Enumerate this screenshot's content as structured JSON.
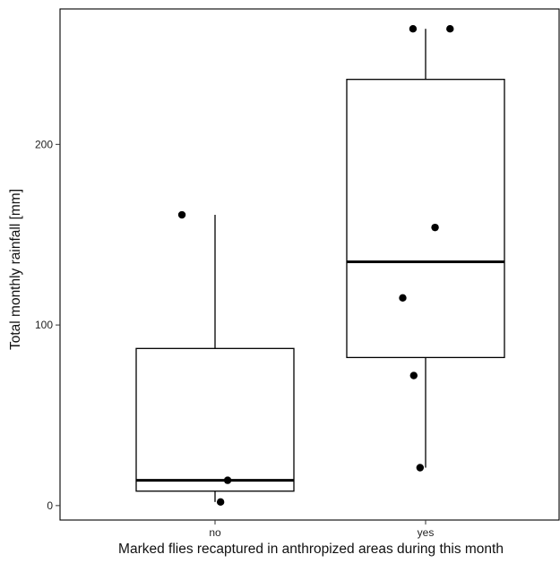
{
  "chart_data": {
    "type": "boxplot",
    "xlabel": "Marked flies recaptured in anthropized areas during this month",
    "ylabel": "Total monthly rainfall [mm]",
    "categories": [
      "no",
      "yes"
    ],
    "ylim": [
      -8,
      275
    ],
    "yticks": [
      0,
      100,
      200
    ],
    "grid": false,
    "boxes": [
      {
        "category": "no",
        "whisker_low": 2,
        "q1": 8,
        "median": 14,
        "q3": 87,
        "whisker_high": 161
      },
      {
        "category": "yes",
        "whisker_low": 21,
        "q1": 82,
        "median": 135,
        "q3": 236,
        "whisker_high": 264
      }
    ],
    "points": [
      {
        "category": "no",
        "jitter": -0.42,
        "y": 161
      },
      {
        "category": "no",
        "jitter": 0.16,
        "y": 14
      },
      {
        "category": "no",
        "jitter": 0.07,
        "y": 2
      },
      {
        "category": "yes",
        "jitter": -0.16,
        "y": 264
      },
      {
        "category": "yes",
        "jitter": 0.31,
        "y": 264
      },
      {
        "category": "yes",
        "jitter": 0.12,
        "y": 154
      },
      {
        "category": "yes",
        "jitter": -0.29,
        "y": 115
      },
      {
        "category": "yes",
        "jitter": -0.15,
        "y": 72
      },
      {
        "category": "yes",
        "jitter": -0.07,
        "y": 21
      }
    ]
  }
}
